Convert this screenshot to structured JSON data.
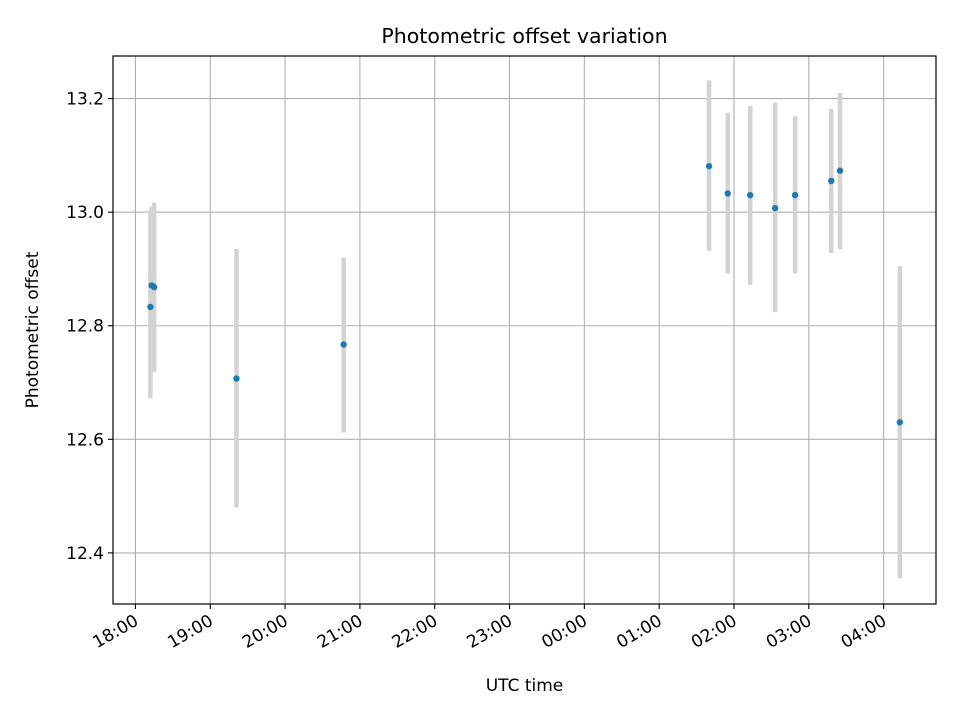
{
  "chart_data": {
    "type": "scatter",
    "title": "Photometric offset variation",
    "xlabel": "UTC time",
    "ylabel": "Photometric offset",
    "x_ticks": [
      "18:00",
      "19:00",
      "20:00",
      "21:00",
      "22:00",
      "23:00",
      "00:00",
      "01:00",
      "02:00",
      "03:00",
      "04:00"
    ],
    "y_ticks": [
      "12.4",
      "12.6",
      "12.8",
      "13.0",
      "13.2"
    ],
    "xlim_hours": [
      17.7,
      28.7
    ],
    "ylim": [
      12.31,
      13.275
    ],
    "grid": true,
    "colors": {
      "point": "#1f77b4",
      "errorbar": "#d3d3d3",
      "grid": "#b0b0b0"
    },
    "points": [
      {
        "time": "18:12",
        "y": 12.833,
        "lo": 12.672,
        "hi": 13.003
      },
      {
        "time": "18:13",
        "y": 12.871,
        "lo": 12.72,
        "hi": 13.01
      },
      {
        "time": "18:15",
        "y": 12.868,
        "lo": 12.718,
        "hi": 13.017
      },
      {
        "time": "19:21",
        "y": 12.707,
        "lo": 12.48,
        "hi": 12.935
      },
      {
        "time": "20:47",
        "y": 12.767,
        "lo": 12.612,
        "hi": 12.92
      },
      {
        "time": "01:40",
        "y": 13.081,
        "lo": 12.932,
        "hi": 13.232
      },
      {
        "time": "01:55",
        "y": 13.033,
        "lo": 12.892,
        "hi": 13.175
      },
      {
        "time": "02:13",
        "y": 13.03,
        "lo": 12.872,
        "hi": 13.187
      },
      {
        "time": "02:33",
        "y": 13.007,
        "lo": 12.824,
        "hi": 13.193
      },
      {
        "time": "02:49",
        "y": 13.03,
        "lo": 12.892,
        "hi": 13.169
      },
      {
        "time": "03:18",
        "y": 13.055,
        "lo": 12.928,
        "hi": 13.182
      },
      {
        "time": "03:25",
        "y": 13.073,
        "lo": 12.935,
        "hi": 13.21
      },
      {
        "time": "04:13",
        "y": 12.63,
        "lo": 12.355,
        "hi": 12.905
      }
    ]
  }
}
